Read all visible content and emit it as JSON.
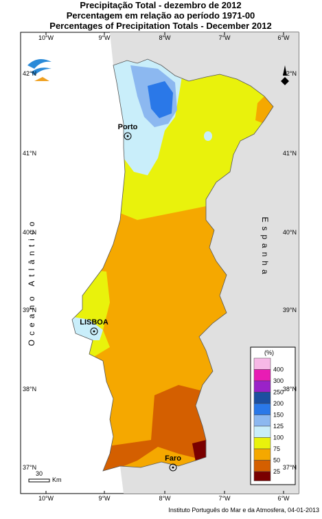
{
  "title": [
    "Precipitação Total  - dezembro de 2012",
    "Percentagem em relação ao período 1971-00",
    "Percentages of Precipitation Totals - December 2012"
  ],
  "longitudes": [
    "10°W",
    "9°W",
    "8°W",
    "7°W",
    "6°W"
  ],
  "latitudes": [
    "42°N",
    "41°N",
    "40°N",
    "39°N",
    "38°N",
    "37°N"
  ],
  "places": {
    "porto": "Porto",
    "lisboa": "LISBOA",
    "faro": "Faro",
    "ocean": "Oceano Atlântico",
    "spain": "Espanha"
  },
  "legend": {
    "title": "(%)",
    "items": [
      {
        "value": 400,
        "color": "#f7b8e6"
      },
      {
        "value": 300,
        "color": "#e81cb4"
      },
      {
        "value": 250,
        "color": "#9a22c8"
      },
      {
        "value": 200,
        "color": "#1c4fa0"
      },
      {
        "value": 150,
        "color": "#2a78e8"
      },
      {
        "value": 125,
        "color": "#8cb8f0"
      },
      {
        "value": 100,
        "color": "#c9eefa"
      },
      {
        "value": 75,
        "color": "#e9f20c"
      },
      {
        "value": 50,
        "color": "#f5a800"
      },
      {
        "value": 25,
        "color": "#d45f00"
      }
    ],
    "min_color": "#7a0000"
  },
  "scale": {
    "value": 30,
    "unit": "Km"
  },
  "credit": "Instituto Português do Mar e da Atmosfera, 04-01-2013"
}
